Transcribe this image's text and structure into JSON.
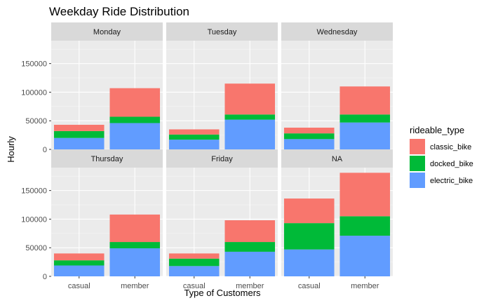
{
  "chart_data": {
    "type": "bar",
    "stacked": true,
    "faceted": true,
    "title": "Weekday Ride Distribution",
    "xlabel": "Type of Customers",
    "ylabel": "Hourly",
    "ylim": [
      0,
      190000
    ],
    "yticks": [
      0,
      50000,
      100000,
      150000
    ],
    "categories": [
      "casual",
      "member"
    ],
    "legend": {
      "title": "rideable_type",
      "position": "right",
      "entries": [
        {
          "name": "classic_bike",
          "color": "#F8766D"
        },
        {
          "name": "docked_bike",
          "color": "#00BA38"
        },
        {
          "name": "electric_bike",
          "color": "#619CFF"
        }
      ]
    },
    "facets": [
      {
        "label": "Monday",
        "values": {
          "casual": {
            "electric_bike": 20000,
            "docked_bike": 12000,
            "classic_bike": 11000
          },
          "member": {
            "electric_bike": 46000,
            "docked_bike": 11000,
            "classic_bike": 50000
          }
        }
      },
      {
        "label": "Tuesday",
        "values": {
          "casual": {
            "electric_bike": 17000,
            "docked_bike": 9000,
            "classic_bike": 9000
          },
          "member": {
            "electric_bike": 52000,
            "docked_bike": 9000,
            "classic_bike": 54000
          }
        }
      },
      {
        "label": "Wednesday",
        "values": {
          "casual": {
            "electric_bike": 18000,
            "docked_bike": 10000,
            "classic_bike": 10000
          },
          "member": {
            "electric_bike": 47000,
            "docked_bike": 14000,
            "classic_bike": 49000
          }
        }
      },
      {
        "label": "Thursday",
        "values": {
          "casual": {
            "electric_bike": 19000,
            "docked_bike": 9000,
            "classic_bike": 12000
          },
          "member": {
            "electric_bike": 49000,
            "docked_bike": 11000,
            "classic_bike": 48000
          }
        }
      },
      {
        "label": "Friday",
        "values": {
          "casual": {
            "electric_bike": 18000,
            "docked_bike": 13000,
            "classic_bike": 9000
          },
          "member": {
            "electric_bike": 43000,
            "docked_bike": 17000,
            "classic_bike": 38000
          }
        }
      },
      {
        "label": "NA",
        "values": {
          "casual": {
            "electric_bike": 47000,
            "docked_bike": 46000,
            "classic_bike": 43000
          },
          "member": {
            "electric_bike": 71000,
            "docked_bike": 34000,
            "classic_bike": 76000
          }
        }
      }
    ]
  }
}
